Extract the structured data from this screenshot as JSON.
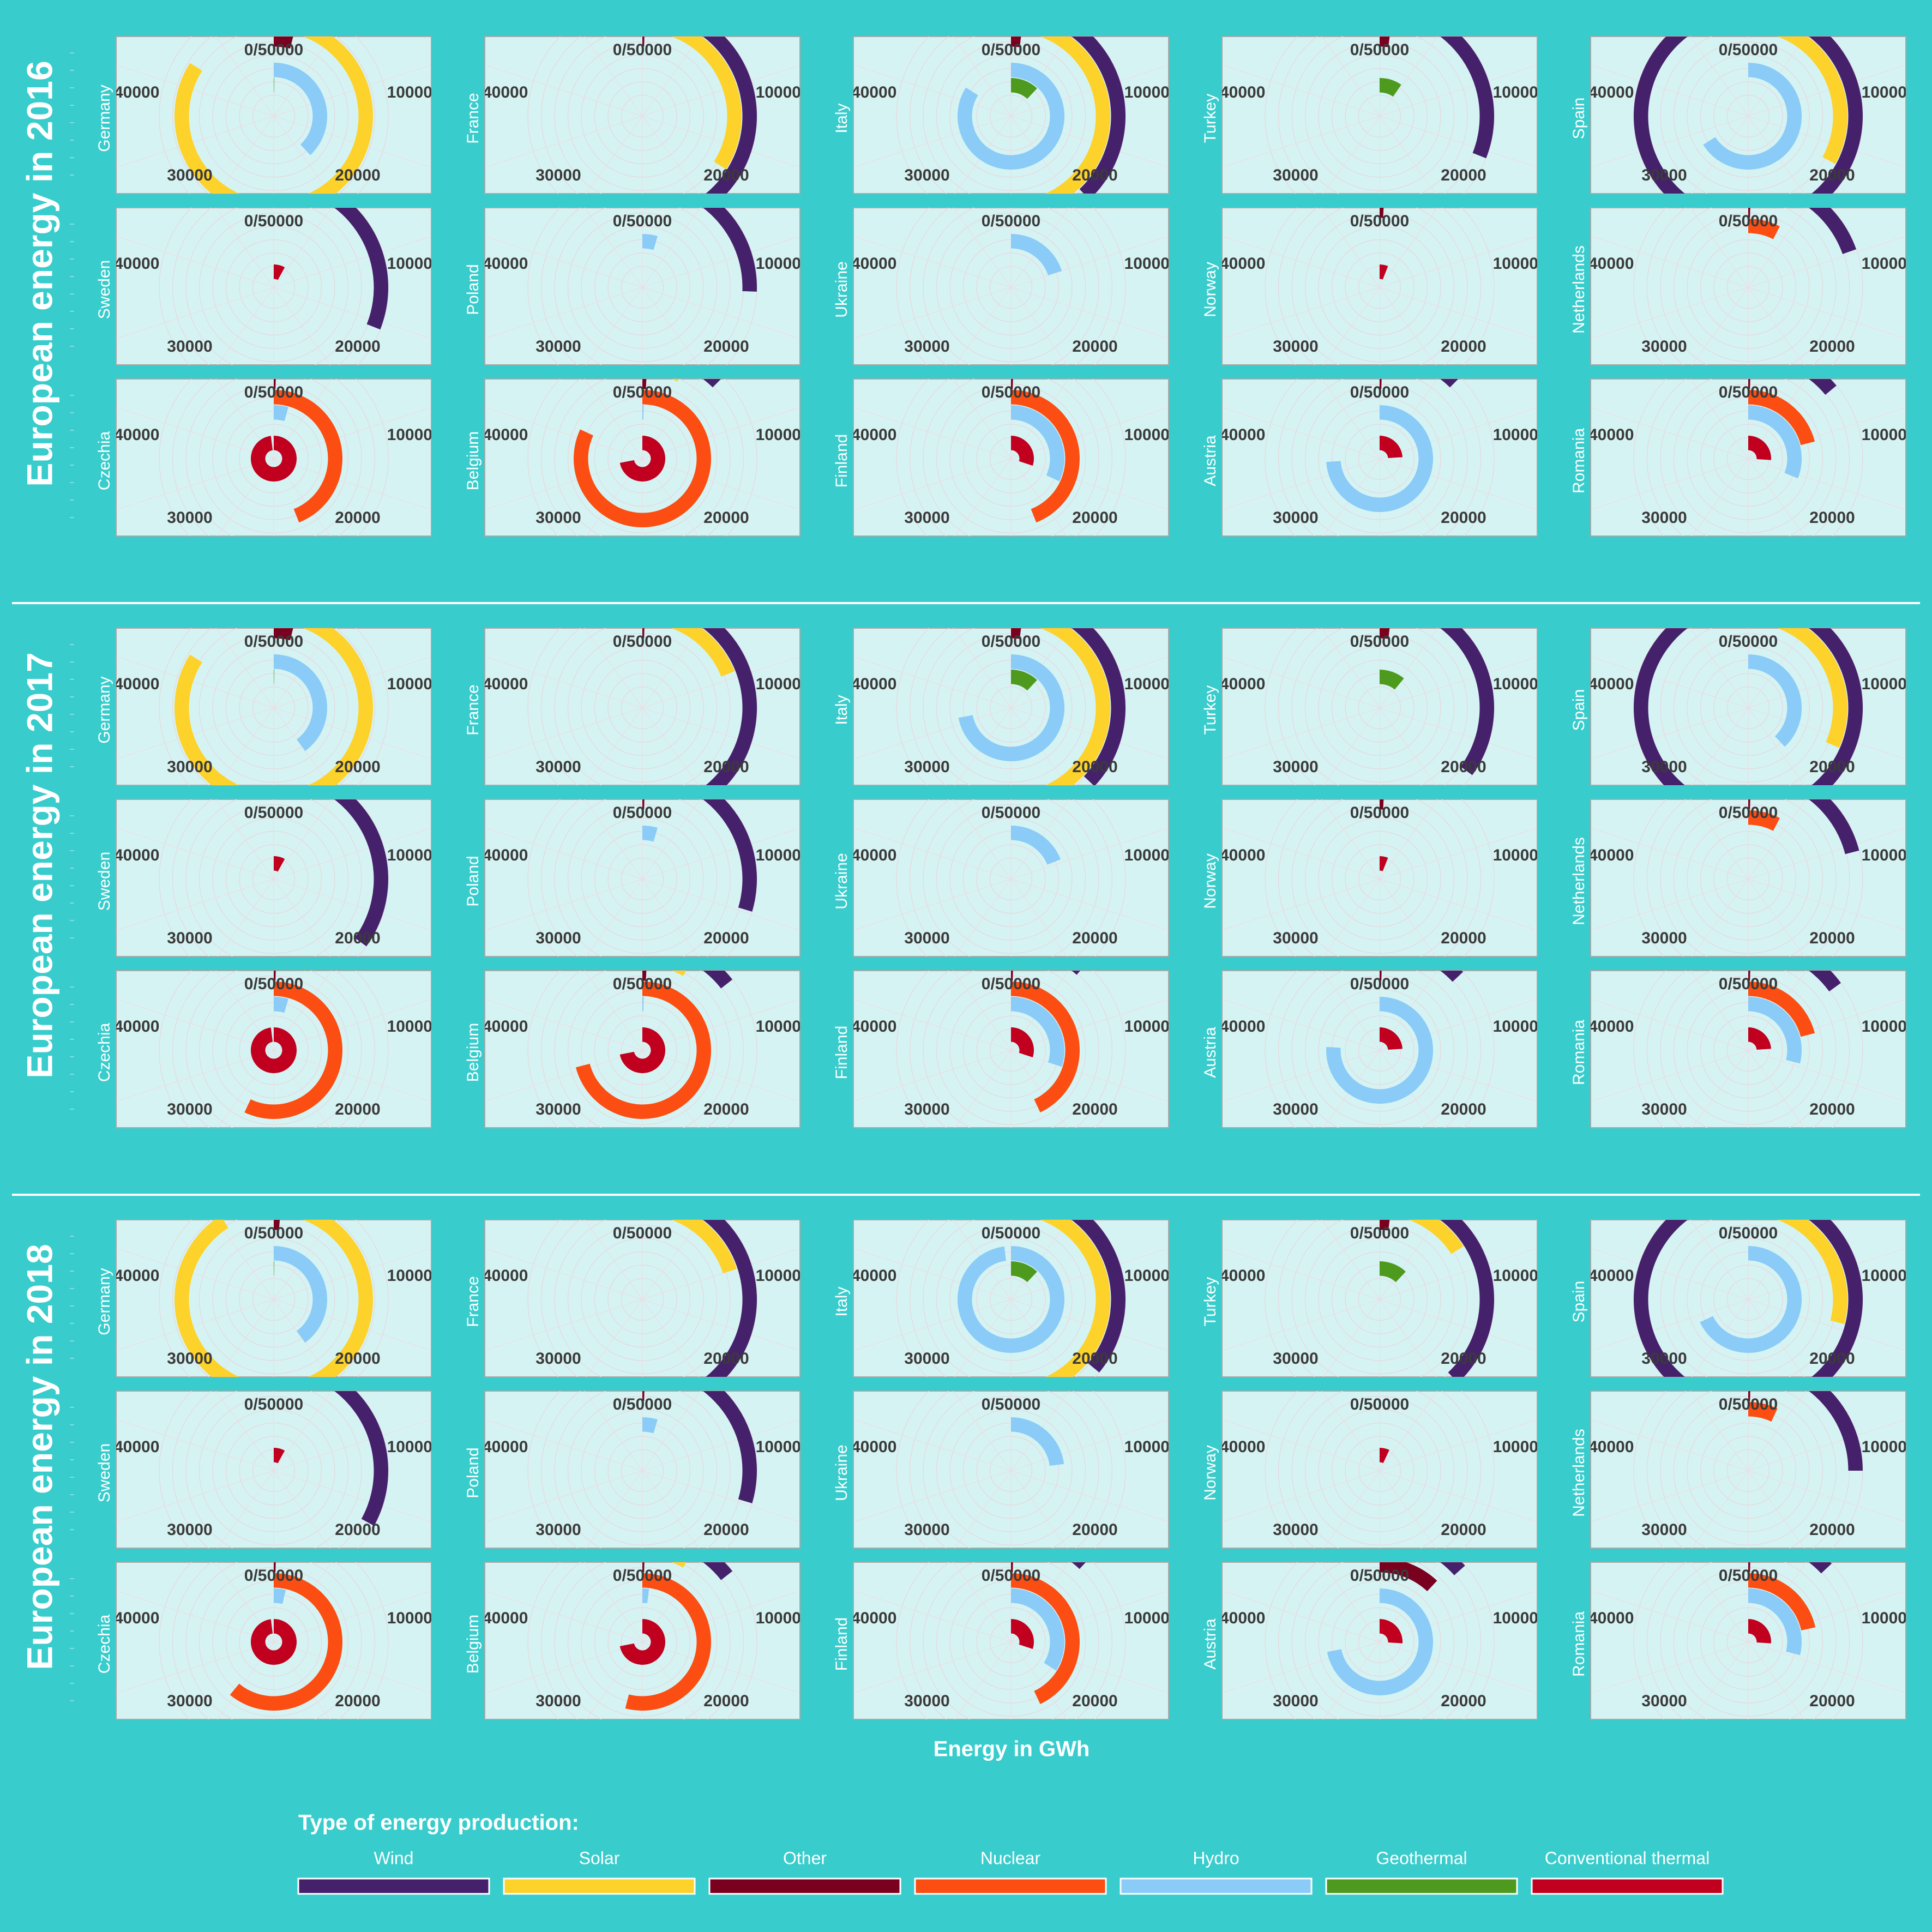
{
  "page": {
    "background": "#39CCCC",
    "panel_background": "#D6F3F3",
    "separator_color": "#FFFFFF"
  },
  "axis": {
    "x_label": "Energy in GWh",
    "tick_labels": [
      "0/50000",
      "10000",
      "20000",
      "30000",
      "40000"
    ]
  },
  "legend": {
    "title": "Type of energy production:",
    "items": [
      {
        "name": "Wind",
        "color": "#46216B"
      },
      {
        "name": "Solar",
        "color": "#FDD22A"
      },
      {
        "name": "Other",
        "color": "#7A0020"
      },
      {
        "name": "Nuclear",
        "color": "#FC4D12"
      },
      {
        "name": "Hydro",
        "color": "#8ACBF7"
      },
      {
        "name": "Geothermal",
        "color": "#4E9A1E"
      },
      {
        "name": "Conventional thermal",
        "color": "#C0001E"
      }
    ]
  },
  "chart_data": [
    {
      "type": "radial-bar",
      "title": "European energy in 2016",
      "year": 2016,
      "xlabel": "Energy in GWh",
      "xlim": [
        0,
        50000
      ],
      "series_order": [
        "Wind",
        "Solar",
        "Other",
        "Nuclear",
        "Hydro",
        "Geothermal",
        "Conventional thermal"
      ],
      "countries": [
        {
          "name": "Germany",
          "values": {
            "Wind": 400,
            "Solar": 42000,
            "Other": 1900,
            "Nuclear": 0,
            "Hydro": 19000,
            "Geothermal": 100,
            "Conventional thermal": 0
          }
        },
        {
          "name": "France",
          "values": {
            "Wind": 21000,
            "Solar": 17000,
            "Other": 200,
            "Nuclear": 0,
            "Hydro": 0,
            "Geothermal": 0,
            "Conventional thermal": 0
          }
        },
        {
          "name": "Italy",
          "values": {
            "Wind": 19000,
            "Solar": 22000,
            "Other": 1000,
            "Nuclear": 0,
            "Hydro": 42000,
            "Geothermal": 6000,
            "Conventional thermal": 0
          }
        },
        {
          "name": "Turkey",
          "values": {
            "Wind": 15500,
            "Solar": 1000,
            "Other": 1000,
            "Nuclear": 0,
            "Hydro": 0,
            "Geothermal": 4800,
            "Conventional thermal": 0
          }
        },
        {
          "name": "Spain",
          "values": {
            "Wind": 48800,
            "Solar": 16500,
            "Other": 0,
            "Nuclear": 0,
            "Hydro": 33000,
            "Geothermal": 0,
            "Conventional thermal": 0
          }
        },
        {
          "name": "Sweden",
          "values": {
            "Wind": 15500,
            "Solar": 0,
            "Other": 0,
            "Nuclear": 0,
            "Hydro": 0,
            "Geothermal": 0,
            "Conventional thermal": 4000
          }
        },
        {
          "name": "Poland",
          "values": {
            "Wind": 12800,
            "Solar": 0,
            "Other": 0,
            "Nuclear": 0,
            "Hydro": 2300,
            "Geothermal": 0,
            "Conventional thermal": 0
          }
        },
        {
          "name": "Ukraine",
          "values": {
            "Wind": 0,
            "Solar": 1000,
            "Other": 0,
            "Nuclear": 0,
            "Hydro": 10000,
            "Geothermal": 0,
            "Conventional thermal": 0
          }
        },
        {
          "name": "Norway",
          "values": {
            "Wind": 2400,
            "Solar": 0,
            "Other": 400,
            "Nuclear": 0,
            "Hydro": 0,
            "Geothermal": 0,
            "Conventional thermal": 3000
          }
        },
        {
          "name": "Netherlands",
          "values": {
            "Wind": 9800,
            "Solar": 1800,
            "Other": 200,
            "Nuclear": 3800,
            "Hydro": 0,
            "Geothermal": 0,
            "Conventional thermal": 0
          }
        },
        {
          "name": "Czechia",
          "values": {
            "Wind": 1000,
            "Solar": 3000,
            "Other": 200,
            "Nuclear": 22000,
            "Hydro": 2200,
            "Geothermal": 0,
            "Conventional thermal": 49000
          }
        },
        {
          "name": "Belgium",
          "values": {
            "Wind": 6200,
            "Solar": 3400,
            "Other": 400,
            "Nuclear": 41000,
            "Hydro": 200,
            "Geothermal": 0,
            "Conventional thermal": 36000
          }
        },
        {
          "name": "Finland",
          "values": {
            "Wind": 4000,
            "Solar": 0,
            "Other": 200,
            "Nuclear": 22000,
            "Hydro": 16000,
            "Geothermal": 0,
            "Conventional thermal": 15000
          }
        },
        {
          "name": "Austria",
          "values": {
            "Wind": 6200,
            "Solar": 1000,
            "Other": 200,
            "Nuclear": 0,
            "Hydro": 37000,
            "Geothermal": 0,
            "Conventional thermal": 12000
          }
        },
        {
          "name": "Romania",
          "values": {
            "Wind": 7000,
            "Solar": 1800,
            "Other": 200,
            "Nuclear": 10500,
            "Hydro": 15500,
            "Geothermal": 0,
            "Conventional thermal": 13000
          }
        }
      ]
    },
    {
      "type": "radial-bar",
      "title": "European energy in 2017",
      "year": 2017,
      "xlabel": "Energy in GWh",
      "xlim": [
        0,
        50000
      ],
      "series_order": [
        "Wind",
        "Solar",
        "Other",
        "Nuclear",
        "Hydro",
        "Geothermal",
        "Conventional thermal"
      ],
      "countries": [
        {
          "name": "Germany",
          "values": {
            "Wind": 400,
            "Solar": 42000,
            "Other": 1900,
            "Nuclear": 0,
            "Hydro": 20000,
            "Geothermal": 100,
            "Conventional thermal": 0
          }
        },
        {
          "name": "France",
          "values": {
            "Wind": 24500,
            "Solar": 9500,
            "Other": 200,
            "Nuclear": 0,
            "Hydro": 0,
            "Geothermal": 0,
            "Conventional thermal": 0
          }
        },
        {
          "name": "Italy",
          "values": {
            "Wind": 18500,
            "Solar": 22000,
            "Other": 1000,
            "Nuclear": 0,
            "Hydro": 36000,
            "Geothermal": 6000,
            "Conventional thermal": 0
          }
        },
        {
          "name": "Turkey",
          "values": {
            "Wind": 17500,
            "Solar": 2900,
            "Other": 1000,
            "Nuclear": 0,
            "Hydro": 0,
            "Geothermal": 5500,
            "Conventional thermal": 0
          }
        },
        {
          "name": "Spain",
          "values": {
            "Wind": 47500,
            "Solar": 15800,
            "Other": 0,
            "Nuclear": 0,
            "Hydro": 19000,
            "Geothermal": 0,
            "Conventional thermal": 0
          }
        },
        {
          "name": "Sweden",
          "values": {
            "Wind": 17500,
            "Solar": 200,
            "Other": 0,
            "Nuclear": 0,
            "Hydro": 0,
            "Geothermal": 0,
            "Conventional thermal": 4000
          }
        },
        {
          "name": "Poland",
          "values": {
            "Wind": 14800,
            "Solar": 200,
            "Other": 200,
            "Nuclear": 0,
            "Hydro": 2300,
            "Geothermal": 0,
            "Conventional thermal": 0
          }
        },
        {
          "name": "Ukraine",
          "values": {
            "Wind": 1000,
            "Solar": 1000,
            "Other": 0,
            "Nuclear": 0,
            "Hydro": 9500,
            "Geothermal": 0,
            "Conventional thermal": 0
          }
        },
        {
          "name": "Norway",
          "values": {
            "Wind": 3000,
            "Solar": 0,
            "Other": 400,
            "Nuclear": 0,
            "Hydro": 0,
            "Geothermal": 0,
            "Conventional thermal": 3000
          }
        },
        {
          "name": "Netherlands",
          "values": {
            "Wind": 10500,
            "Solar": 2200,
            "Other": 200,
            "Nuclear": 3800,
            "Hydro": 0,
            "Geothermal": 0,
            "Conventional thermal": 0
          }
        },
        {
          "name": "Czechia",
          "values": {
            "Wind": 1000,
            "Solar": 3000,
            "Other": 200,
            "Nuclear": 28500,
            "Hydro": 2200,
            "Geothermal": 0,
            "Conventional thermal": 49000
          }
        },
        {
          "name": "Belgium",
          "values": {
            "Wind": 7200,
            "Solar": 4000,
            "Other": 400,
            "Nuclear": 35500,
            "Hydro": 200,
            "Geothermal": 0,
            "Conventional thermal": 36000
          }
        },
        {
          "name": "Finland",
          "values": {
            "Wind": 5700,
            "Solar": 0,
            "Other": 200,
            "Nuclear": 21500,
            "Hydro": 15000,
            "Geothermal": 0,
            "Conventional thermal": 15000
          }
        },
        {
          "name": "Austria",
          "values": {
            "Wind": 6500,
            "Solar": 1200,
            "Other": 200,
            "Nuclear": 0,
            "Hydro": 38000,
            "Geothermal": 0,
            "Conventional thermal": 12000
          }
        },
        {
          "name": "Romania",
          "values": {
            "Wind": 7500,
            "Solar": 1800,
            "Other": 200,
            "Nuclear": 10500,
            "Hydro": 14500,
            "Geothermal": 0,
            "Conventional thermal": 12000
          }
        }
      ]
    },
    {
      "type": "radial-bar",
      "title": "European energy in 2018",
      "year": 2018,
      "xlabel": "Energy in GWh",
      "xlim": [
        0,
        50000
      ],
      "series_order": [
        "Wind",
        "Solar",
        "Other",
        "Nuclear",
        "Hydro",
        "Geothermal",
        "Conventional thermal"
      ],
      "countries": [
        {
          "name": "Germany",
          "values": {
            "Wind": 400,
            "Solar": 45500,
            "Other": 600,
            "Nuclear": 0,
            "Hydro": 20000,
            "Geothermal": 100,
            "Conventional thermal": 0
          }
        },
        {
          "name": "France",
          "values": {
            "Wind": 26000,
            "Solar": 10000,
            "Other": 0,
            "Nuclear": 0,
            "Hydro": 0,
            "Geothermal": 0,
            "Conventional thermal": 0
          }
        },
        {
          "name": "Italy",
          "values": {
            "Wind": 18000,
            "Solar": 22500,
            "Other": 0,
            "Nuclear": 0,
            "Hydro": 49000,
            "Geothermal": 6000,
            "Conventional thermal": 0
          }
        },
        {
          "name": "Turkey",
          "values": {
            "Wind": 19000,
            "Solar": 8000,
            "Other": 1000,
            "Nuclear": 0,
            "Hydro": 0,
            "Geothermal": 6000,
            "Conventional thermal": 0
          }
        },
        {
          "name": "Spain",
          "values": {
            "Wind": 48500,
            "Solar": 14500,
            "Other": 0,
            "Nuclear": 0,
            "Hydro": 34000,
            "Geothermal": 0,
            "Conventional thermal": 0
          }
        },
        {
          "name": "Sweden",
          "values": {
            "Wind": 16500,
            "Solar": 0,
            "Other": 0,
            "Nuclear": 0,
            "Hydro": 0,
            "Geothermal": 0,
            "Conventional thermal": 4000
          }
        },
        {
          "name": "Poland",
          "values": {
            "Wind": 14800,
            "Solar": 200,
            "Other": 200,
            "Nuclear": 0,
            "Hydro": 2300,
            "Geothermal": 0,
            "Conventional thermal": 0
          }
        },
        {
          "name": "Ukraine",
          "values": {
            "Wind": 1400,
            "Solar": 1200,
            "Other": 0,
            "Nuclear": 0,
            "Hydro": 11500,
            "Geothermal": 0,
            "Conventional thermal": 0
          }
        },
        {
          "name": "Norway",
          "values": {
            "Wind": 3800,
            "Solar": 0,
            "Other": 0,
            "Nuclear": 0,
            "Hydro": 0,
            "Geothermal": 0,
            "Conventional thermal": 3500
          }
        },
        {
          "name": "Netherlands",
          "values": {
            "Wind": 12500,
            "Solar": 2800,
            "Other": 200,
            "Nuclear": 3500,
            "Hydro": 0,
            "Geothermal": 0,
            "Conventional thermal": 0
          }
        },
        {
          "name": "Czechia",
          "values": {
            "Wind": 1000,
            "Solar": 2200,
            "Other": 200,
            "Nuclear": 30500,
            "Hydro": 1800,
            "Geothermal": 0,
            "Conventional thermal": 49000
          }
        },
        {
          "name": "Belgium",
          "values": {
            "Wind": 7200,
            "Solar": 4000,
            "Other": 200,
            "Nuclear": 27000,
            "Hydro": 1000,
            "Geothermal": 0,
            "Conventional thermal": 36000
          }
        },
        {
          "name": "Finland",
          "values": {
            "Wind": 6000,
            "Solar": 100,
            "Other": 200,
            "Nuclear": 21500,
            "Hydro": 17000,
            "Geothermal": 0,
            "Conventional thermal": 15000
          }
        },
        {
          "name": "Austria",
          "values": {
            "Wind": 6700,
            "Solar": 600,
            "Other": 6000,
            "Nuclear": 0,
            "Hydro": 36000,
            "Geothermal": 0,
            "Conventional thermal": 13000
          }
        },
        {
          "name": "Romania",
          "values": {
            "Wind": 6500,
            "Solar": 1800,
            "Other": 200,
            "Nuclear": 10800,
            "Hydro": 14500,
            "Geothermal": 0,
            "Conventional thermal": 13000
          }
        }
      ]
    }
  ]
}
